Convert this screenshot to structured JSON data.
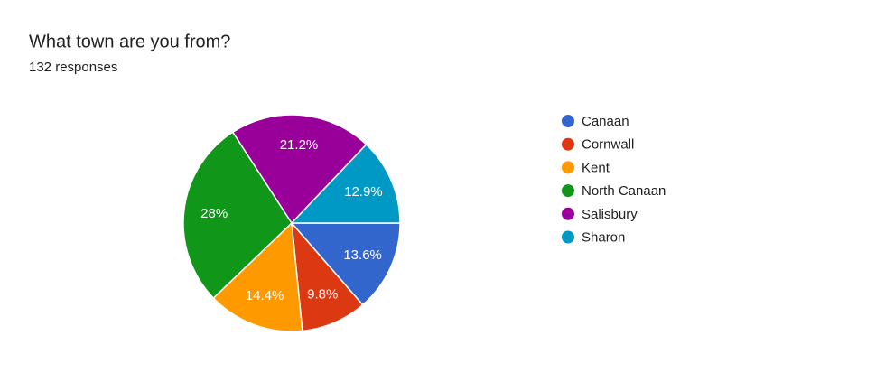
{
  "chart_data": {
    "type": "pie",
    "title": "What town are you from?",
    "subtitle": "132 responses",
    "categories": [
      "Canaan",
      "Cornwall",
      "Kent",
      "North Canaan",
      "Salisbury",
      "Sharon"
    ],
    "values": [
      13.6,
      9.8,
      14.4,
      28,
      21.2,
      12.9
    ],
    "value_labels": [
      "13.6%",
      "9.8%",
      "14.4%",
      "28%",
      "21.2%",
      "12.9%"
    ],
    "colors": [
      "#3366cc",
      "#dc3912",
      "#ff9900",
      "#109618",
      "#990099",
      "#0099c6"
    ],
    "legend": "right"
  }
}
